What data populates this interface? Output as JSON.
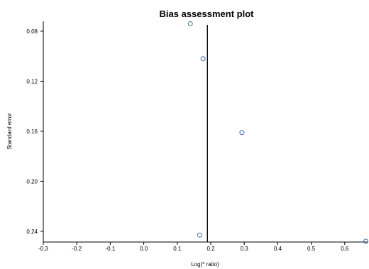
{
  "chart_data": {
    "type": "scatter",
    "title": "Bias assessment plot",
    "xlabel": "Log(* ratio)",
    "ylabel": "Standard error",
    "xlim": [
      -0.3,
      0.7
    ],
    "ylim": [
      0.08,
      0.248
    ],
    "y_inverted": true,
    "x_ticks": [
      "-0.3",
      "-0.2",
      "-0.1",
      "0.0",
      "0.1",
      "0.2",
      "0.3",
      "0.4",
      "0.5",
      "0.6"
    ],
    "y_ticks": [
      "0.08",
      "0.12",
      "0.16",
      "0.20",
      "0.24"
    ],
    "grid": false,
    "reference_line_x": 0.19,
    "points": [
      {
        "x": 0.139,
        "y": 0.074
      },
      {
        "x": 0.177,
        "y": 0.102
      },
      {
        "x": 0.293,
        "y": 0.161
      },
      {
        "x": 0.167,
        "y": 0.243
      },
      {
        "x": 0.663,
        "y": 0.248
      }
    ],
    "marker_color": "#3a6ea5"
  }
}
